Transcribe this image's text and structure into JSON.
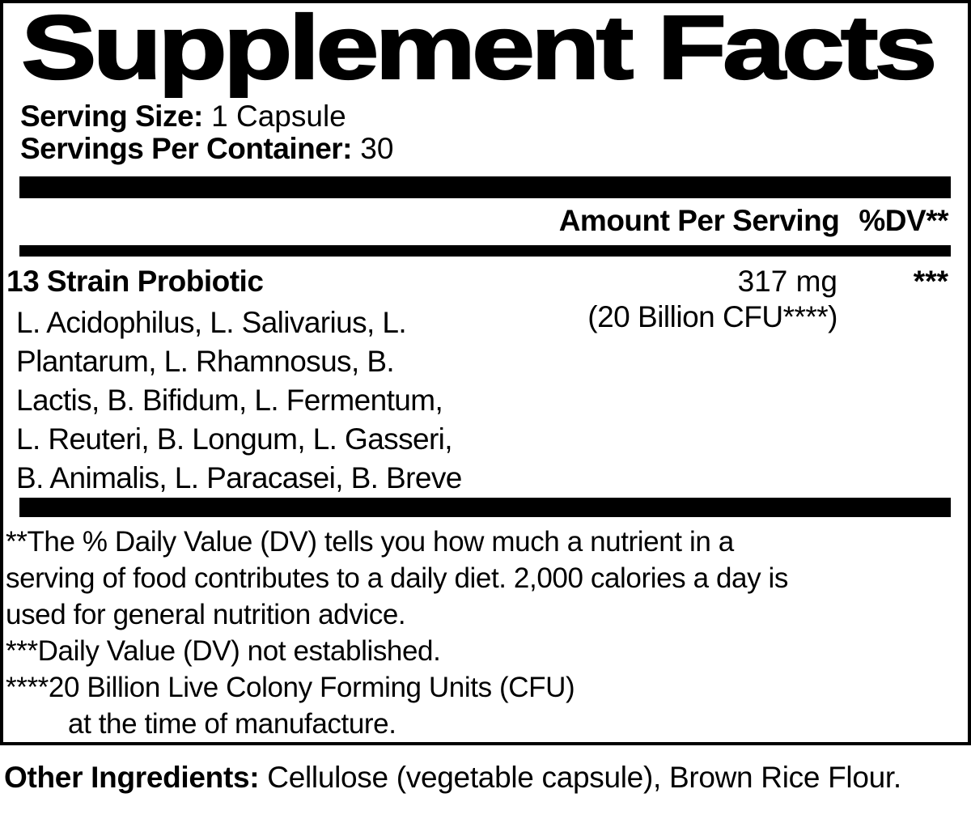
{
  "colors": {
    "ink": "#000000",
    "background": "#ffffff"
  },
  "label": {
    "title": "Supplement Facts",
    "serving_size": {
      "label": "Serving Size:",
      "value": " 1 Capsule"
    },
    "servings_per_container": {
      "label": "Servings Per Container:",
      "value": " 30"
    },
    "columns": {
      "amount": "Amount Per Serving",
      "dv": "%DV**"
    },
    "rows": [
      {
        "name": "13 Strain Probiotic",
        "amount": "317 mg",
        "amount_note": "(20 Billion CFU****)",
        "dv": "***",
        "details_lines": [
          "L. Acidophilus, L. Salivarius, L.",
          "Plantarum, L. Rhamnosus, B.",
          "Lactis, B. Bifidum, L. Fermentum,",
          "L. Reuteri, B. Longum, L. Gasseri,",
          "B. Animalis, L. Paracasei, B. Breve"
        ]
      }
    ],
    "footnotes": {
      "dv_explainer_lines": [
        "**The % Daily Value (DV) tells you how much a nutrient in a",
        "serving of food contributes to a daily diet. 2,000 calories a day is",
        "used for general nutrition advice."
      ],
      "not_established": "***Daily Value (DV) not established.",
      "cfu_line1": "****20 Billion Live Colony Forming Units (CFU)",
      "cfu_line2": "at the time of manufacture."
    },
    "other_ingredients": {
      "label": "Other Ingredients:",
      "value": " Cellulose (vegetable capsule), Brown Rice Flour."
    }
  }
}
